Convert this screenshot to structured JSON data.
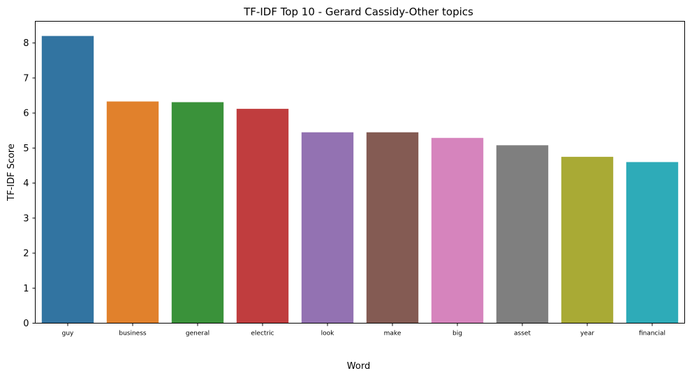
{
  "chart_data": {
    "type": "bar",
    "title": "TF-IDF Top 10 - Gerard Cassidy-Other topics",
    "xlabel": "Word",
    "ylabel": "TF-IDF Score",
    "categories": [
      "guy",
      "business",
      "general",
      "electric",
      "look",
      "make",
      "big",
      "asset",
      "year",
      "financial"
    ],
    "values": [
      8.2,
      6.33,
      6.31,
      6.12,
      5.45,
      5.45,
      5.29,
      5.08,
      4.75,
      4.6
    ],
    "colors": [
      "#3274a1",
      "#e1812c",
      "#3a923a",
      "#c03d3e",
      "#9372b2",
      "#845b53",
      "#d684bd",
      "#7f7f7f",
      "#a9aa35",
      "#2eabb8"
    ],
    "ylim": [
      0,
      8.62
    ],
    "yticks": [
      0,
      1,
      2,
      3,
      4,
      5,
      6,
      7,
      8
    ],
    "grid": false,
    "legend": "none"
  }
}
